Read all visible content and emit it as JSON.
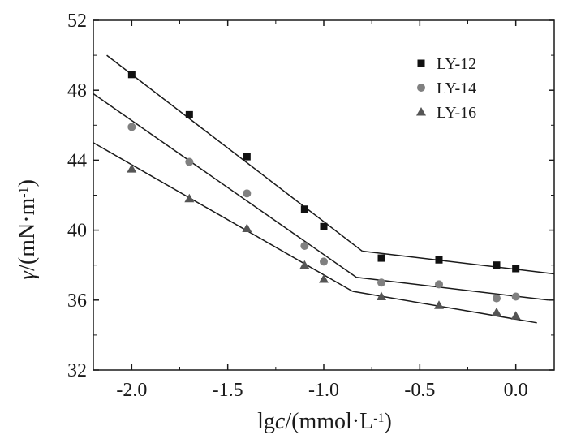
{
  "chart_data": {
    "type": "scatter",
    "xlim": [
      -2.2,
      0.2
    ],
    "ylim": [
      32,
      52
    ],
    "xticks": [
      -2.0,
      -1.5,
      -1.0,
      -0.5,
      0.0
    ],
    "xtick_labels": [
      "-2.0",
      "-1.5",
      "-1.0",
      "-0.5",
      "0.0"
    ],
    "yticks": [
      32,
      36,
      40,
      44,
      48,
      52
    ],
    "ytick_labels": [
      "32",
      "36",
      "40",
      "44",
      "48",
      "52"
    ],
    "xlabel": {
      "pre": "lg",
      "italic": "c",
      "post": "/(mmol·L",
      "sup": "-1",
      "close": ")"
    },
    "ylabel": {
      "italic": "γ",
      "post": "/(mN·m",
      "sup": "-1",
      "close": ")"
    },
    "grid": false,
    "legend_position": "top-right",
    "series": [
      {
        "name": "LY-12",
        "marker": "square",
        "color": "#111111",
        "x": [
          -2.0,
          -1.7,
          -1.4,
          -1.1,
          -1.0,
          -0.7,
          -0.4,
          -0.1,
          0.0
        ],
        "y": [
          48.9,
          46.6,
          44.2,
          41.2,
          40.2,
          38.4,
          38.3,
          38.0,
          37.8
        ],
        "fit_lines": [
          [
            [
              -2.13,
              50.0
            ],
            [
              -0.8,
              38.8
            ]
          ],
          [
            [
              -0.8,
              38.8
            ],
            [
              0.2,
              37.5
            ]
          ]
        ]
      },
      {
        "name": "LY-14",
        "marker": "circle",
        "color": "#808080",
        "x": [
          -2.0,
          -1.7,
          -1.4,
          -1.1,
          -1.0,
          -0.7,
          -0.4,
          -0.1,
          0.0
        ],
        "y": [
          45.9,
          43.9,
          42.1,
          39.1,
          38.2,
          37.0,
          36.9,
          36.1,
          36.2
        ],
        "fit_lines": [
          [
            [
              -2.2,
              47.8
            ],
            [
              -0.83,
              37.3
            ]
          ],
          [
            [
              -0.83,
              37.3
            ],
            [
              0.17,
              36.0
            ]
          ]
        ]
      },
      {
        "name": "LY-16",
        "marker": "triangle",
        "color": "#555555",
        "x": [
          -2.0,
          -1.7,
          -1.4,
          -1.1,
          -1.0,
          -0.7,
          -0.4,
          -0.1,
          0.0
        ],
        "y": [
          43.5,
          41.8,
          40.1,
          38.0,
          37.2,
          36.2,
          35.7,
          35.3,
          35.1
        ],
        "fit_lines": [
          [
            [
              -2.2,
              45.0
            ],
            [
              -0.85,
              36.5
            ]
          ],
          [
            [
              -0.85,
              36.5
            ],
            [
              0.11,
              34.7
            ]
          ]
        ]
      }
    ]
  }
}
